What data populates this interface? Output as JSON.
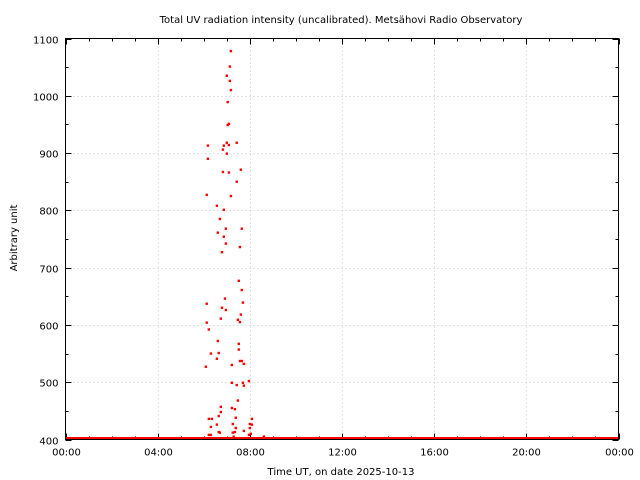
{
  "chart_data": {
    "type": "scatter",
    "title": "Total UV radiation intensity (uncalibrated). Metsähovi Radio Observatory",
    "xlabel": "Time UT, on date 2025-10-13",
    "ylabel": "Arbitrary unit",
    "xlim": [
      0,
      24
    ],
    "ylim": [
      400,
      1100
    ],
    "x_ticks": [
      0,
      4,
      8,
      12,
      16,
      20,
      24
    ],
    "x_tick_labels": [
      "00:00",
      "04:00",
      "08:00",
      "12:00",
      "16:00",
      "20:00",
      "00:00"
    ],
    "y_ticks": [
      400,
      500,
      600,
      700,
      800,
      900,
      1000,
      1100
    ],
    "y_tick_labels": [
      "400",
      "500",
      "600",
      "700",
      "800",
      "900",
      "1000",
      "1100"
    ],
    "grid": true,
    "series_color": "#ff0000",
    "baseline": {
      "value": 400,
      "x_from": 0,
      "x_to": 24
    },
    "points": [
      [
        7.18,
        1078
      ],
      [
        7.13,
        1051
      ],
      [
        7.0,
        1035
      ],
      [
        7.13,
        1026
      ],
      [
        7.18,
        1010
      ],
      [
        7.04,
        989
      ],
      [
        7.04,
        949
      ],
      [
        7.09,
        951
      ],
      [
        7.0,
        918
      ],
      [
        7.43,
        918
      ],
      [
        6.18,
        913
      ],
      [
        6.87,
        913
      ],
      [
        7.09,
        914
      ],
      [
        6.83,
        906
      ],
      [
        7.0,
        899
      ],
      [
        6.18,
        890
      ],
      [
        6.83,
        867
      ],
      [
        7.09,
        866
      ],
      [
        7.61,
        871
      ],
      [
        7.43,
        850
      ],
      [
        6.13,
        827
      ],
      [
        7.18,
        825
      ],
      [
        6.57,
        808
      ],
      [
        6.87,
        801
      ],
      [
        6.7,
        785
      ],
      [
        7.65,
        768
      ],
      [
        6.96,
        768
      ],
      [
        6.61,
        761
      ],
      [
        6.87,
        754
      ],
      [
        6.96,
        742
      ],
      [
        7.57,
        736
      ],
      [
        6.79,
        727
      ],
      [
        7.52,
        677
      ],
      [
        7.65,
        661
      ],
      [
        6.13,
        637
      ],
      [
        6.92,
        646
      ],
      [
        7.7,
        639
      ],
      [
        6.79,
        630
      ],
      [
        6.96,
        626
      ],
      [
        7.61,
        618
      ],
      [
        6.74,
        611
      ],
      [
        7.48,
        609
      ],
      [
        7.57,
        605
      ],
      [
        6.13,
        604
      ],
      [
        6.22,
        592
      ],
      [
        6.61,
        572
      ],
      [
        7.52,
        567
      ],
      [
        7.52,
        557
      ],
      [
        6.31,
        550
      ],
      [
        6.65,
        551
      ],
      [
        6.57,
        541
      ],
      [
        7.57,
        537
      ],
      [
        7.65,
        537
      ],
      [
        7.74,
        532
      ],
      [
        6.09,
        527
      ],
      [
        7.22,
        530
      ],
      [
        7.96,
        502
      ],
      [
        7.22,
        499
      ],
      [
        7.43,
        495
      ],
      [
        7.7,
        499
      ],
      [
        7.74,
        494
      ],
      [
        7.48,
        468
      ],
      [
        6.74,
        457
      ],
      [
        7.22,
        455
      ],
      [
        7.35,
        453
      ],
      [
        6.74,
        448
      ],
      [
        6.65,
        441
      ],
      [
        7.39,
        438
      ],
      [
        6.22,
        436
      ],
      [
        6.35,
        436
      ],
      [
        8.09,
        436
      ],
      [
        6.57,
        426
      ],
      [
        7.26,
        427
      ],
      [
        8.0,
        427
      ],
      [
        8.09,
        426
      ],
      [
        6.31,
        422
      ],
      [
        7.39,
        420
      ],
      [
        8.0,
        420
      ],
      [
        7.74,
        415
      ],
      [
        6.65,
        413
      ],
      [
        6.7,
        412
      ],
      [
        7.26,
        412
      ],
      [
        7.35,
        413
      ],
      [
        6.22,
        408
      ],
      [
        6.31,
        408
      ],
      [
        7.3,
        405
      ],
      [
        7.96,
        408
      ],
      [
        8.04,
        410
      ],
      [
        8.61,
        405
      ]
    ]
  }
}
